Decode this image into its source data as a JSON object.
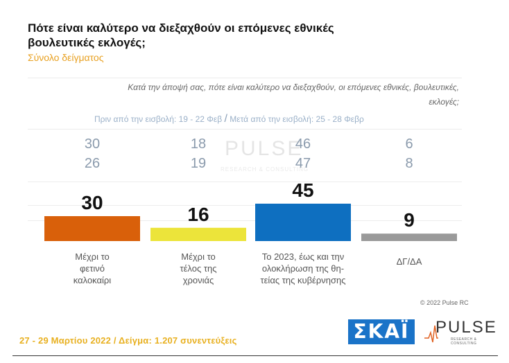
{
  "header": {
    "title": "Πότε είναι καλύτερο να διεξαχθούν οι επόμενες εθνικές βουλευτικές εκλογές;",
    "subtitle": "Σύνολο δείγματος",
    "question": "Κατά την άποψή σας, πότε είναι καλύτερο να διεξαχθούν, οι επόμενες εθνικές, βουλευτικές, εκλογές;",
    "period_before": "Πριν από την εισβολή: 19 - 22 Φεβ",
    "period_after": "Μετά από την εισβολή: 25 - 28 Φεβρ"
  },
  "chart_data": {
    "type": "bar",
    "categories": [
      "Μέχρι το φετινό καλοκαίρι",
      "Μέχρι το τέλος της χρονιάς",
      "Το 2023, έως και την ολοκλήρωση της θη- τείας της κυβέρνησης",
      "ΔΓ/ΔΑ"
    ],
    "category_lines": [
      [
        "Μέχρι το",
        "φετινό",
        "καλοκαίρι"
      ],
      [
        "Μέχρι το",
        "τέλος της",
        "χρονιάς"
      ],
      [
        "Το 2023, έως και την",
        "ολοκλήρωση της θη-",
        "τείας της κυβέρνησης"
      ],
      [
        "ΔΓ/ΔΑ"
      ]
    ],
    "series": [
      {
        "name": "Πριν από την εισβολή: 19 - 22 Φεβ",
        "values": [
          30,
          18,
          46,
          6
        ]
      },
      {
        "name": "Μετά από την εισβολή: 25 - 28 Φεβρ",
        "values": [
          26,
          19,
          47,
          8
        ]
      },
      {
        "name": "27 - 29 Μαρτίου 2022",
        "values": [
          30,
          16,
          45,
          9
        ]
      }
    ],
    "colors": [
      "#d9600a",
      "#ece43a",
      "#0e6fc0",
      "#9a9a9a"
    ],
    "ylim": [
      0,
      100
    ]
  },
  "footer": {
    "copyright": "© 2022 Pulse RC",
    "sample": "27 - 29 Μαρτίου 2022 / Δείγμα: 1.207 συνεντεύξεις",
    "skai_logo": "ΣΚΑΪ",
    "pulse_logo": "PULSE",
    "pulse_tagline": "RESEARCH & CONSULTING"
  }
}
